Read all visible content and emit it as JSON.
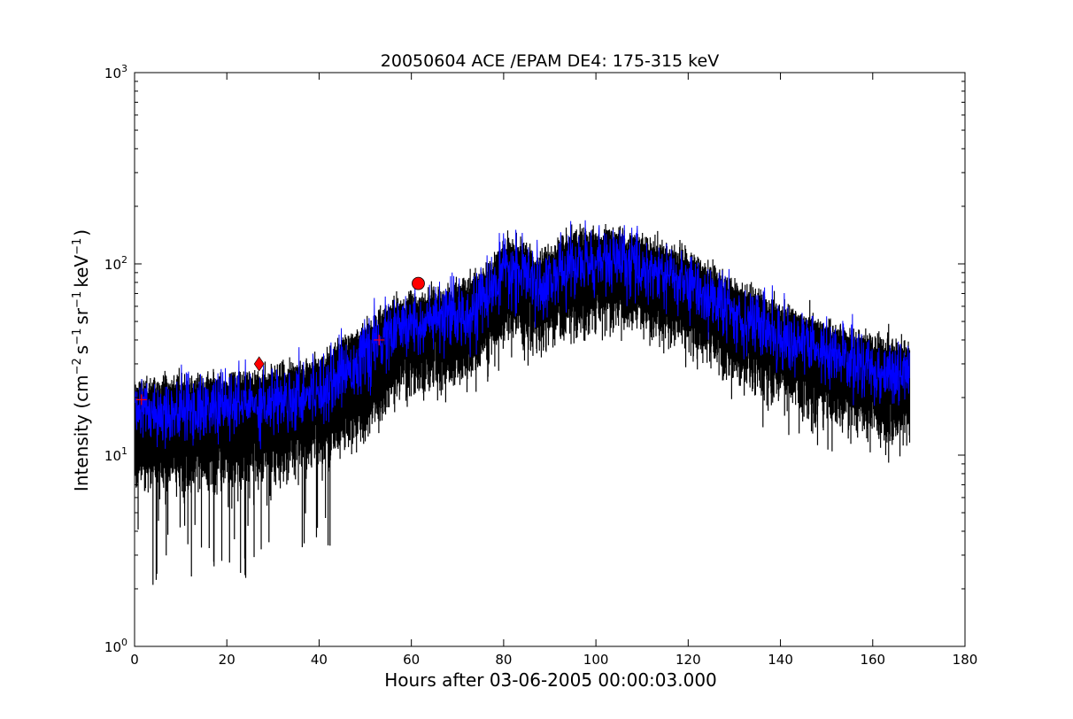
{
  "chart_data": {
    "type": "line",
    "title": "20050604 ACE /EPAM DE4: 175-315 keV",
    "xlabel": "Hours after 03-06-2005 00:00:03.000",
    "ylabel_parts": {
      "prefix": "Intensity (cm",
      "exp1": "−2",
      "s": "s",
      "exp2": "−1",
      "sr": "sr",
      "exp3": "−1",
      "kev": "keV",
      "exp4": "−1",
      "suffix": ")"
    },
    "xlim": [
      0,
      180
    ],
    "ylim": [
      1,
      1000
    ],
    "yscale": "log",
    "grid": false,
    "x_ticks": [
      0,
      20,
      40,
      60,
      80,
      100,
      120,
      140,
      160,
      180
    ],
    "x_tick_labels": [
      "0",
      "20",
      "40",
      "60",
      "80",
      "100",
      "120",
      "140",
      "160",
      "180"
    ],
    "y_ticks": [
      1,
      10,
      100,
      1000
    ],
    "y_tick_labels": [
      {
        "base": "10",
        "exp": "0"
      },
      {
        "base": "10",
        "exp": "1"
      },
      {
        "base": "10",
        "exp": "2"
      },
      {
        "base": "10",
        "exp": "3"
      }
    ],
    "series": [
      {
        "style": "error-envelope",
        "color": "#000000",
        "x_range": [
          0,
          168
        ],
        "trend": {
          "x": [
            0,
            10,
            20,
            30,
            40,
            50,
            55,
            60,
            65,
            70,
            75,
            80,
            83,
            87,
            90,
            95,
            100,
            105,
            110,
            120,
            130,
            140,
            150,
            160,
            168
          ],
          "y": [
            17,
            17,
            18,
            19,
            22,
            33,
            42,
            48,
            50,
            52,
            62,
            88,
            92,
            76,
            82,
            98,
            102,
            102,
            96,
            78,
            55,
            42,
            34,
            28,
            26
          ]
        }
      },
      {
        "style": "line",
        "color": "#0000ff",
        "x_range": [
          0,
          168
        ],
        "trend": {
          "x": [
            0,
            10,
            20,
            30,
            40,
            50,
            55,
            60,
            65,
            70,
            75,
            80,
            83,
            87,
            90,
            95,
            100,
            105,
            110,
            120,
            130,
            140,
            150,
            160,
            168
          ],
          "y": [
            17,
            17,
            18,
            19,
            22,
            33,
            42,
            48,
            50,
            52,
            62,
            88,
            92,
            76,
            82,
            98,
            102,
            102,
            96,
            78,
            55,
            42,
            34,
            28,
            26
          ]
        }
      }
    ],
    "markers": [
      {
        "shape": "plus",
        "x": 1.5,
        "y": 19.5,
        "color": "#ff0000"
      },
      {
        "shape": "diamond",
        "x": 27,
        "y": 30,
        "color": "#ff0000"
      },
      {
        "shape": "plus",
        "x": 53,
        "y": 40,
        "color": "#ff0000"
      },
      {
        "shape": "circle",
        "x": 61.5,
        "y": 79,
        "color": "#ff0000"
      }
    ]
  }
}
